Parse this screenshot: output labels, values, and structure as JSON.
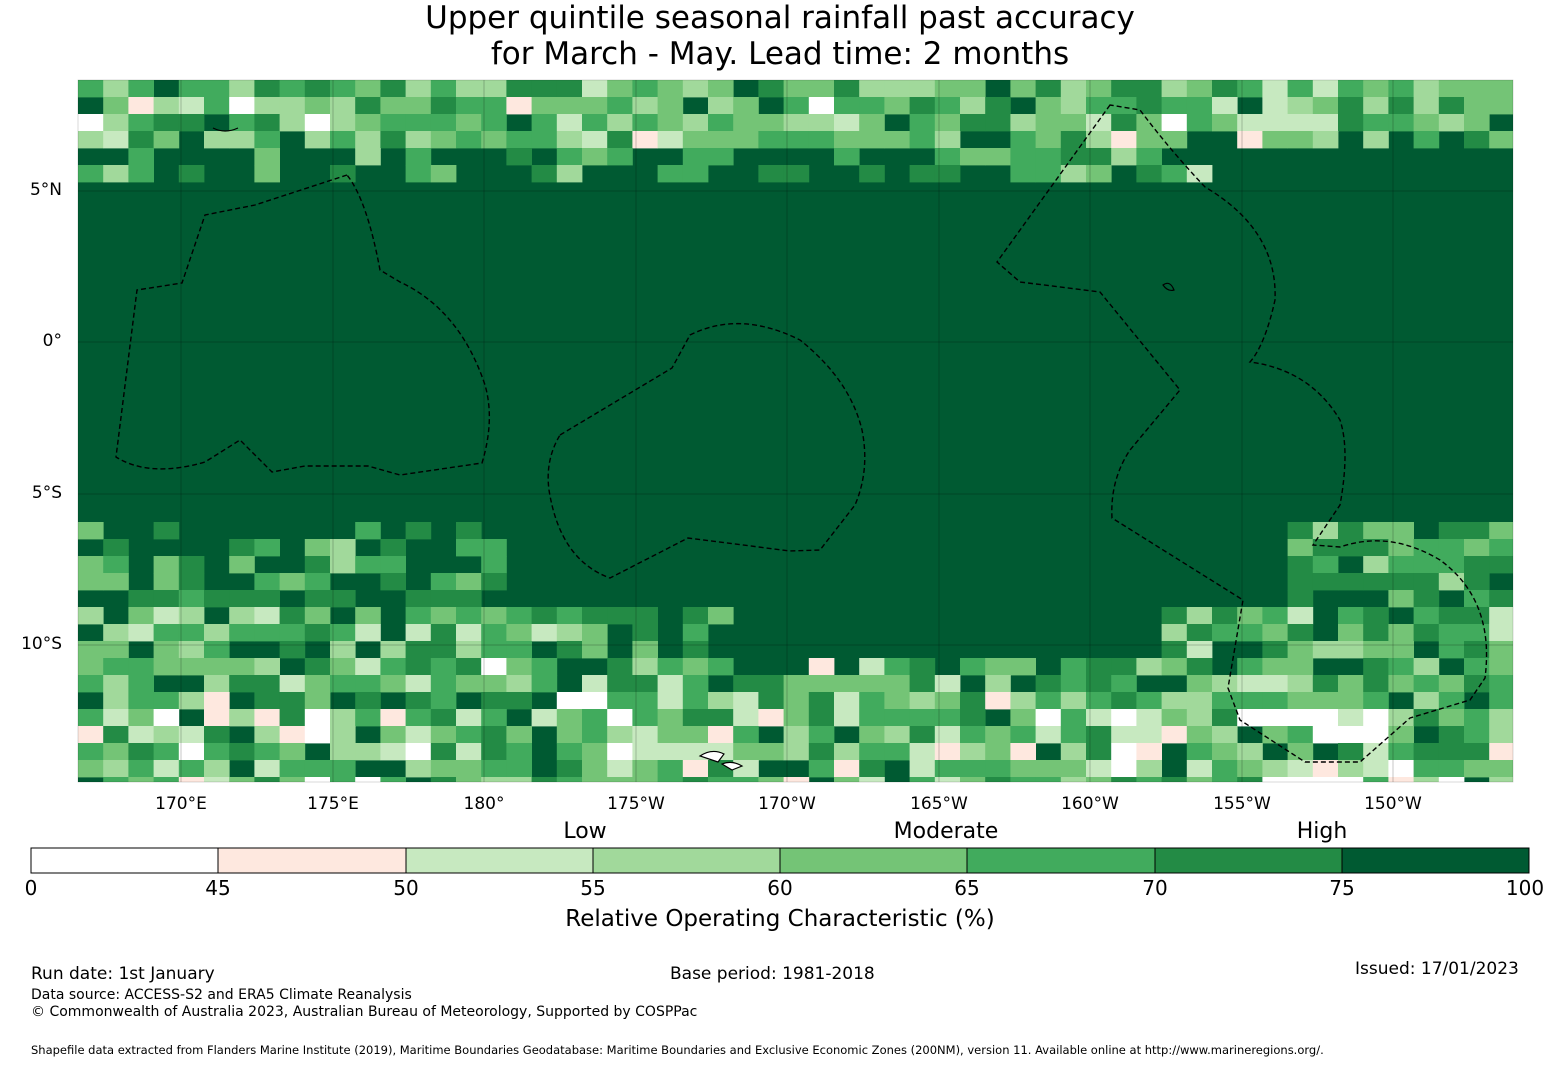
{
  "title_line1": "Upper quintile seasonal rainfall past accuracy",
  "title_line2": "for March - May. Lead time: 2 months",
  "lat_labels": [
    "5°N",
    "0°",
    "5°S",
    "10°S"
  ],
  "lon_labels": [
    "170°E",
    "175°E",
    "180°",
    "175°W",
    "170°W",
    "165°W",
    "160°W",
    "155°W",
    "150°W"
  ],
  "category_labels": [
    "Low",
    "Moderate",
    "High"
  ],
  "colorbar": {
    "ticks": [
      "0",
      "45",
      "50",
      "55",
      "60",
      "65",
      "70",
      "75",
      "100"
    ],
    "colors": [
      "#ffffff",
      "#fee8df",
      "#c7e9c0",
      "#a1d99b",
      "#74c476",
      "#41ab5d",
      "#238b45",
      "#005a32"
    ],
    "title": "Relative Operating Characteristic (%)"
  },
  "footer": {
    "run_date": "Run date: 1st January",
    "base_period": "Base period: 1981-2018",
    "issued": "Issued: 17/01/2023",
    "data_source": "Data source: ACCESS-S2 and ERA5 Climate Reanalysis",
    "copyright": "© Commonwealth of Australia 2023, Australian Bureau of Meteorology, Supported by COSPPac",
    "shapefile": "Shapefile data extracted from Flanders Marine Institute (2019), Maritime Boundaries Geodatabase: Maritime Boundaries and Exclusive Economic Zones (200NM), version 11. Available online at http://www.marineregions.org/."
  }
}
